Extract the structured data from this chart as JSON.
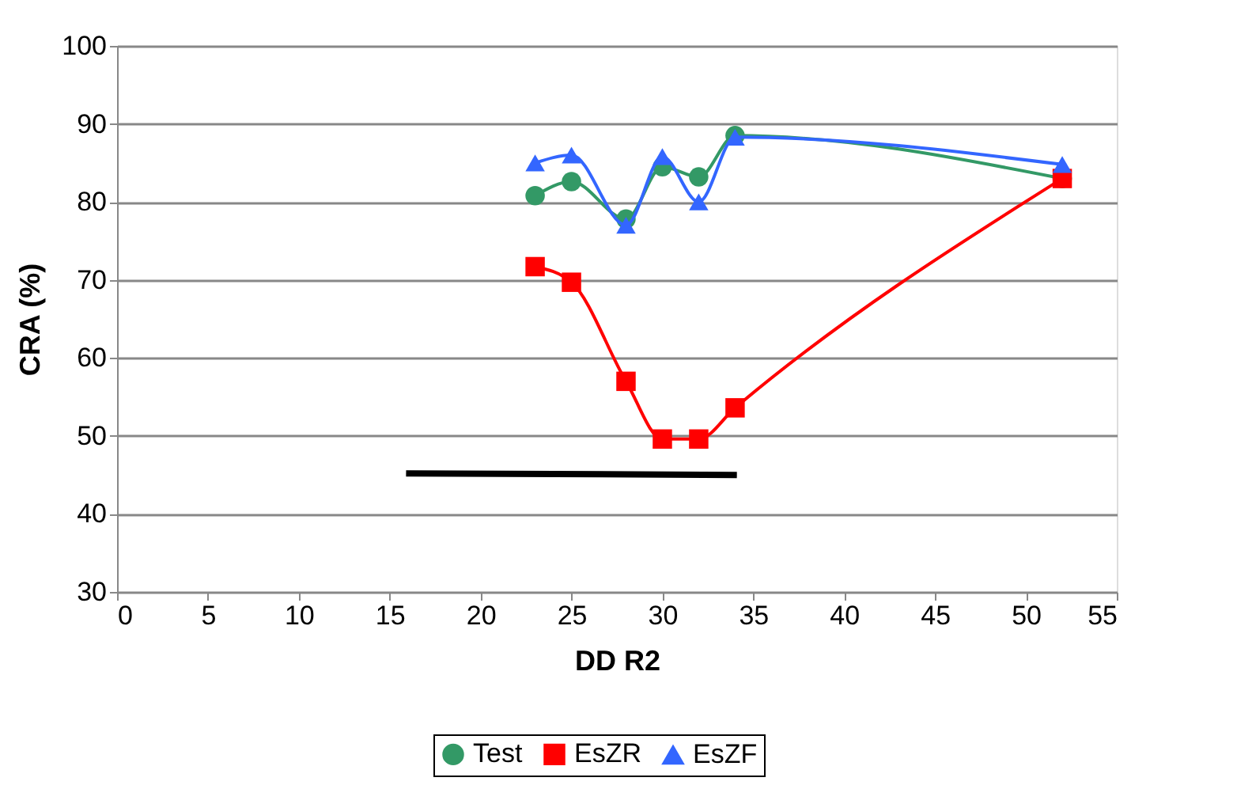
{
  "chart_data": {
    "type": "line",
    "xlabel": "DD R2",
    "ylabel": "CRA (%)",
    "xlim": [
      0,
      55
    ],
    "xticks": [
      0,
      5,
      10,
      15,
      20,
      25,
      30,
      35,
      40,
      45,
      50,
      55
    ],
    "ylim": [
      30,
      100
    ],
    "yticks": [
      30,
      40,
      50,
      60,
      70,
      80,
      90,
      100
    ],
    "grid": "y",
    "legend": "bottom",
    "x": [
      23,
      25,
      28,
      30,
      32,
      34,
      52
    ],
    "series": [
      {
        "name": "Test",
        "color": "#339966",
        "marker": "circle",
        "values": [
          80.8,
          82.6,
          77.8,
          84.5,
          83.2,
          88.5,
          83.0
        ]
      },
      {
        "name": "EsZR",
        "color": "#ff0000",
        "marker": "square",
        "values": [
          71.7,
          69.7,
          57.0,
          49.6,
          49.6,
          53.6,
          83.0
        ]
      },
      {
        "name": "EsZF",
        "color": "#3366ff",
        "marker": "triangle",
        "values": [
          85.0,
          86.0,
          77.0,
          85.8,
          80.0,
          88.3,
          84.8
        ]
      },
      {
        "color": "#000000",
        "marker": "none",
        "x": [
          15.9,
          34.1
        ],
        "values": [
          45.2,
          45.0
        ]
      }
    ]
  }
}
